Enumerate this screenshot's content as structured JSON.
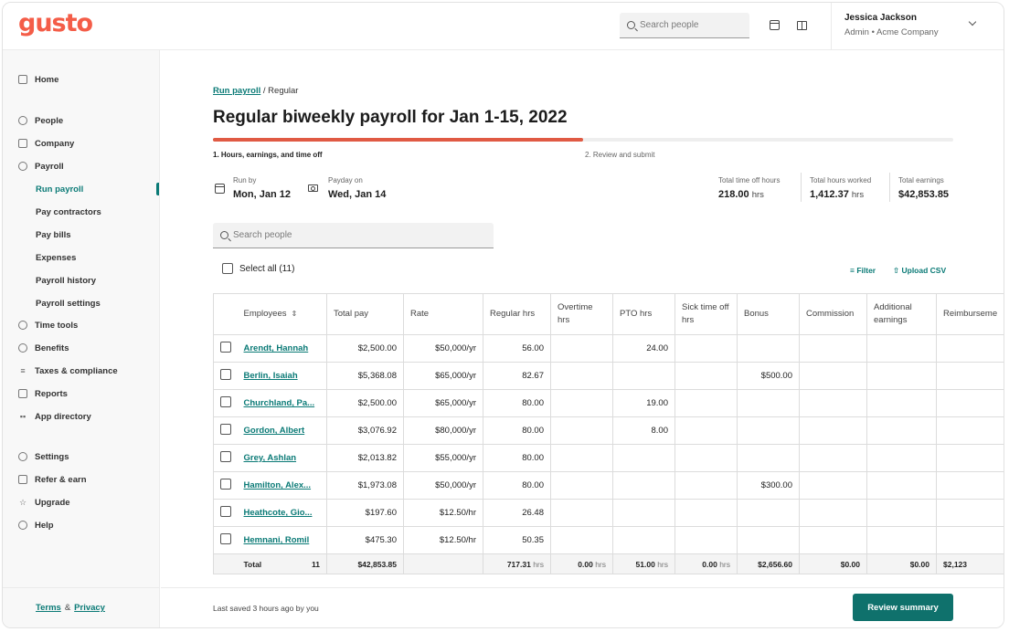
{
  "brand": {
    "logo_text": "gusto",
    "accent": "#f45d48",
    "primary": "#0f716c"
  },
  "topbar": {
    "search_placeholder": "Search people",
    "user_name": "Jessica Jackson",
    "user_role": "Admin • Acme Company"
  },
  "sidebar": {
    "home": "Home",
    "people": "People",
    "company": "Company",
    "payroll": "Payroll",
    "payroll_items": [
      "Run payroll",
      "Pay contractors",
      "Pay bills",
      "Expenses",
      "Payroll history",
      "Payroll settings"
    ],
    "time_tools": "Time tools",
    "benefits": "Benefits",
    "taxes": "Taxes & compliance",
    "reports": "Reports",
    "app_directory": "App directory",
    "settings": "Settings",
    "refer": "Refer & earn",
    "upgrade": "Upgrade",
    "help": "Help",
    "terms": "Terms",
    "amp": "&",
    "privacy": "Privacy"
  },
  "main": {
    "breadcrumb_link": "Run payroll",
    "breadcrumb_current": "/ Regular",
    "title": "Regular biweekly payroll for Jan 1-15, 2022",
    "progress_percent": 50,
    "step1": "1. Hours, earnings, and time off",
    "step2": "2. Review and submit",
    "run_by_label": "Run by",
    "run_by_value": "Mon, Jan 12",
    "payday_label": "Payday on",
    "payday_value": "Wed, Jan 14",
    "stats": {
      "time_off_label": "Total time off hours",
      "time_off_value": "218.00",
      "time_off_unit": "hrs",
      "hours_label": "Total hours worked",
      "hours_value": "1,412.37",
      "hours_unit": "hrs",
      "earnings_label": "Total earnings",
      "earnings_value": "$42,853.85"
    },
    "search_placeholder": "Search people",
    "select_all": "Select all (11)",
    "filter": "Filter",
    "upload": "Upload CSV"
  },
  "table": {
    "headers": [
      "Employees",
      "Total pay",
      "Rate",
      "Regular hrs",
      "Overtime hrs",
      "PTO hrs",
      "Sick time off hrs",
      "Bonus",
      "Commission",
      "Additional earnings",
      "Reimburseme"
    ],
    "rows": [
      {
        "name": "Arendt, Hannah",
        "total": "$2,500.00",
        "rate": "$50,000/yr",
        "regular": "56.00",
        "overtime": "",
        "pto": "24.00",
        "sick": "",
        "bonus": "",
        "commission": "",
        "additional": "",
        "reimb": ""
      },
      {
        "name": "Berlin, Isaiah",
        "total": "$5,368.08",
        "rate": "$65,000/yr",
        "regular": "82.67",
        "overtime": "",
        "pto": "",
        "sick": "",
        "bonus": "$500.00",
        "commission": "",
        "additional": "",
        "reimb": ""
      },
      {
        "name": "Churchland, Pa...",
        "total": "$2,500.00",
        "rate": "$65,000/yr",
        "regular": "80.00",
        "overtime": "",
        "pto": "19.00",
        "sick": "",
        "bonus": "",
        "commission": "",
        "additional": "",
        "reimb": ""
      },
      {
        "name": "Gordon, Albert",
        "total": "$3,076.92",
        "rate": "$80,000/yr",
        "regular": "80.00",
        "overtime": "",
        "pto": "8.00",
        "sick": "",
        "bonus": "",
        "commission": "",
        "additional": "",
        "reimb": ""
      },
      {
        "name": "Grey, Ashlan",
        "total": "$2,013.82",
        "rate": "$55,000/yr",
        "regular": "80.00",
        "overtime": "",
        "pto": "",
        "sick": "",
        "bonus": "",
        "commission": "",
        "additional": "",
        "reimb": ""
      },
      {
        "name": "Hamilton, Alex...",
        "total": "$1,973.08",
        "rate": "$50,000/yr",
        "regular": "80.00",
        "overtime": "",
        "pto": "",
        "sick": "",
        "bonus": "$300.00",
        "commission": "",
        "additional": "",
        "reimb": ""
      },
      {
        "name": "Heathcote, Gio...",
        "total": "$197.60",
        "rate": "$12.50/hr",
        "regular": "26.48",
        "overtime": "",
        "pto": "",
        "sick": "",
        "bonus": "",
        "commission": "",
        "additional": "",
        "reimb": ""
      },
      {
        "name": "Hemnani, Romil",
        "total": "$475.30",
        "rate": "$12.50/hr",
        "regular": "50.35",
        "overtime": "",
        "pto": "",
        "sick": "",
        "bonus": "",
        "commission": "",
        "additional": "",
        "reimb": ""
      }
    ],
    "total_row": {
      "label": "Total",
      "count": "11",
      "total": "$42,853.85",
      "rate": "",
      "regular": "717.31",
      "overtime": "0.00",
      "pto": "51.00",
      "sick": "0.00",
      "unit": "hrs",
      "bonus": "$2,656.60",
      "commission": "$0.00",
      "additional": "$0.00",
      "reimb": "$2,123"
    }
  },
  "footer": {
    "saved_text": "Last saved 3 hours ago by you",
    "review_button": "Review summary"
  }
}
